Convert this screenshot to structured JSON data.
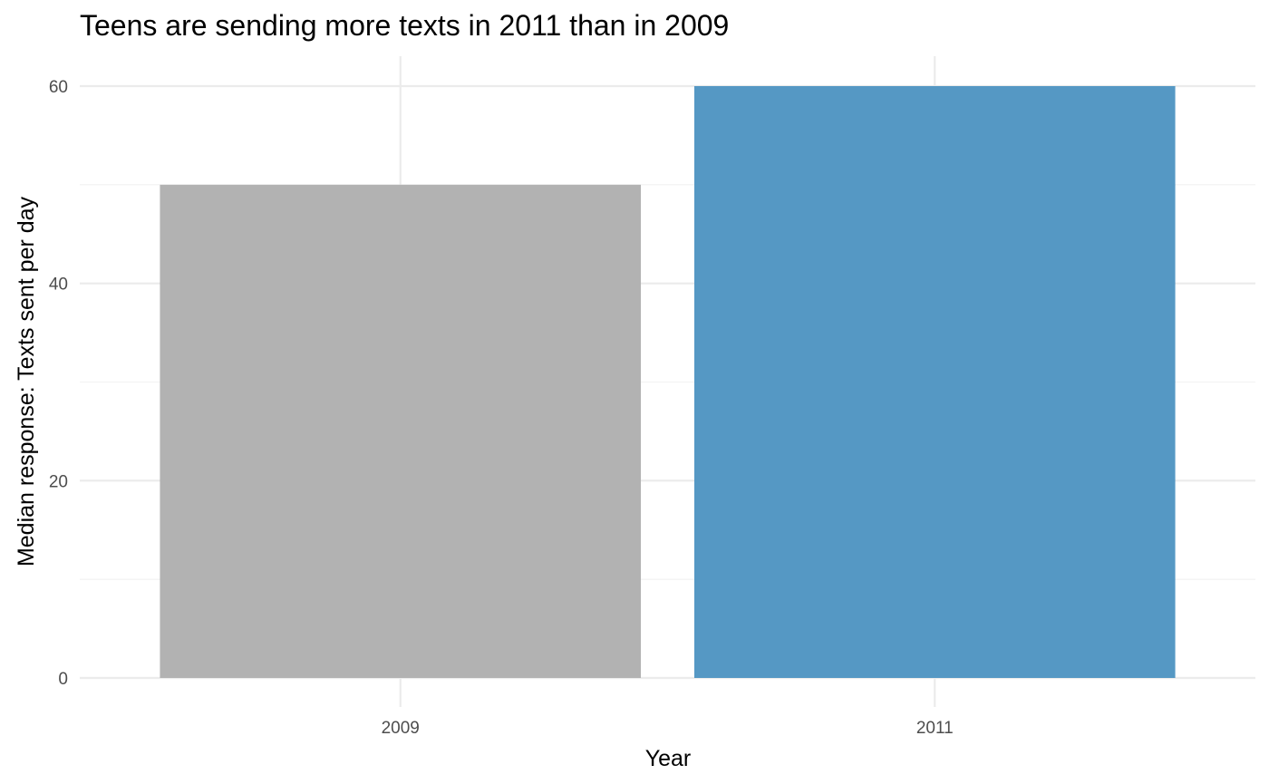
{
  "chart_data": {
    "type": "bar",
    "title": "Teens are sending more texts in 2011 than in 2009",
    "xlabel": "Year",
    "ylabel": "Median response: Texts sent per day",
    "categories": [
      "2009",
      "2011"
    ],
    "values": [
      50,
      60
    ],
    "colors": [
      "#b2b2b2",
      "#5598c4"
    ],
    "ylim": [
      0,
      60
    ],
    "yticks": [
      0,
      20,
      40,
      60
    ],
    "yticks_minor": [
      10,
      30,
      50
    ],
    "grid": true,
    "legend": "none"
  }
}
